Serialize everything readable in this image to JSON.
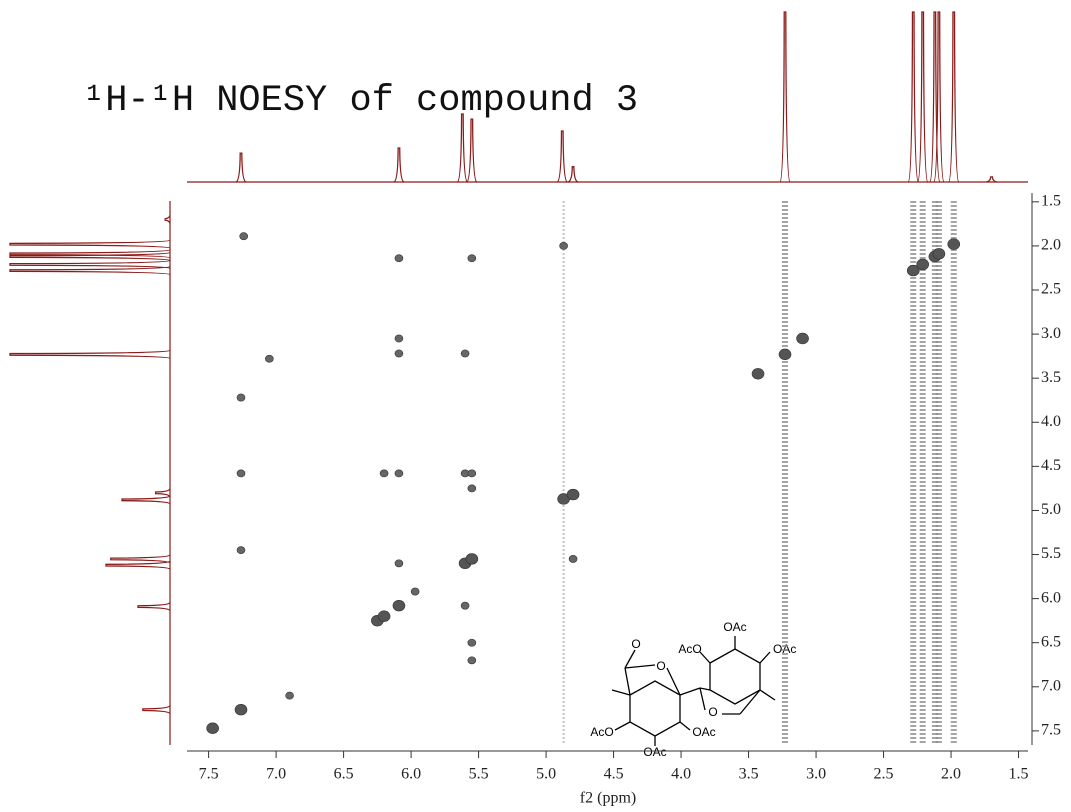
{
  "chart_data": {
    "type": "noesy",
    "title": "¹H-¹H NOESY of compound 3",
    "x_label": "f2 (ppm)",
    "xlim": [
      7.66,
      1.43
    ],
    "ylim": [
      1.4,
      7.66
    ],
    "xticks": [
      7.5,
      {
        "value": 7,
        "label": "7.0"
      },
      6.5,
      {
        "value": 6,
        "label": "6.0"
      },
      5.5,
      {
        "value": 5,
        "label": "5.0"
      },
      4.5,
      {
        "value": 4,
        "label": "4.0"
      },
      3.5,
      {
        "value": 3,
        "label": "3.0"
      },
      2.5,
      {
        "value": 2,
        "label": "2.0"
      },
      1.5
    ],
    "yticks": [
      1.5,
      {
        "value": 2,
        "label": "2.0"
      },
      2.5,
      {
        "value": 3,
        "label": "3.0"
      },
      3.5,
      {
        "value": 4,
        "label": "4.0"
      },
      4.5,
      {
        "value": 5,
        "label": "5.0"
      },
      5.5,
      {
        "value": 6,
        "label": "6.0"
      },
      6.5,
      {
        "value": 7,
        "label": "7.0"
      },
      7.5
    ],
    "spectrum_color": "#8b1a1a",
    "spectrum": {
      "positions": [
        7.26,
        6.09,
        5.62,
        5.55,
        4.88,
        4.8,
        3.23,
        2.28,
        2.21,
        2.12,
        2.09,
        1.98,
        1.7
      ],
      "heights": [
        0.17,
        0.2,
        0.4,
        0.37,
        0.3,
        0.09,
        1,
        1,
        1,
        1,
        1,
        1,
        0.03
      ]
    },
    "streaks": [
      4.87,
      3.23,
      2.28,
      2.21,
      2.12,
      2.09,
      1.98
    ],
    "series": [
      {
        "color": "#555555",
        "x": [
          7.47,
          7.26,
          6.25,
          6.2,
          6.09,
          5.6,
          5.55,
          4.87,
          4.8,
          3.23,
          3.43,
          3.1,
          2.28,
          2.21,
          2.12,
          2.09,
          1.98
        ],
        "y": [
          7.47,
          7.26,
          6.25,
          6.2,
          6.08,
          5.6,
          5.55,
          4.87,
          4.82,
          3.23,
          3.45,
          3.05,
          2.28,
          2.21,
          2.12,
          2.09,
          1.98
        ]
      },
      {
        "color": "#666666",
        "x": [
          7.24,
          7.26,
          7.26,
          7.26,
          6.09,
          6.09,
          6.09,
          6.09,
          6.09,
          5.6,
          5.6,
          5.6,
          5.55,
          5.55,
          5.55,
          5.55,
          5.55,
          4.87,
          4.8,
          6.9,
          7.05,
          6.2,
          5.97
        ],
        "y": [
          1.89,
          3.72,
          4.58,
          5.45,
          2.14,
          3.05,
          3.22,
          4.58,
          5.6,
          3.22,
          4.58,
          6.08,
          2.14,
          4.58,
          4.75,
          6.5,
          6.7,
          2.0,
          5.55,
          7.1,
          3.28,
          4.58,
          5.92
        ]
      }
    ],
    "structure": [
      "OAc",
      "AcO",
      "OAc",
      "AcO",
      "OAc",
      "OAc",
      "O",
      "O",
      "O"
    ]
  }
}
